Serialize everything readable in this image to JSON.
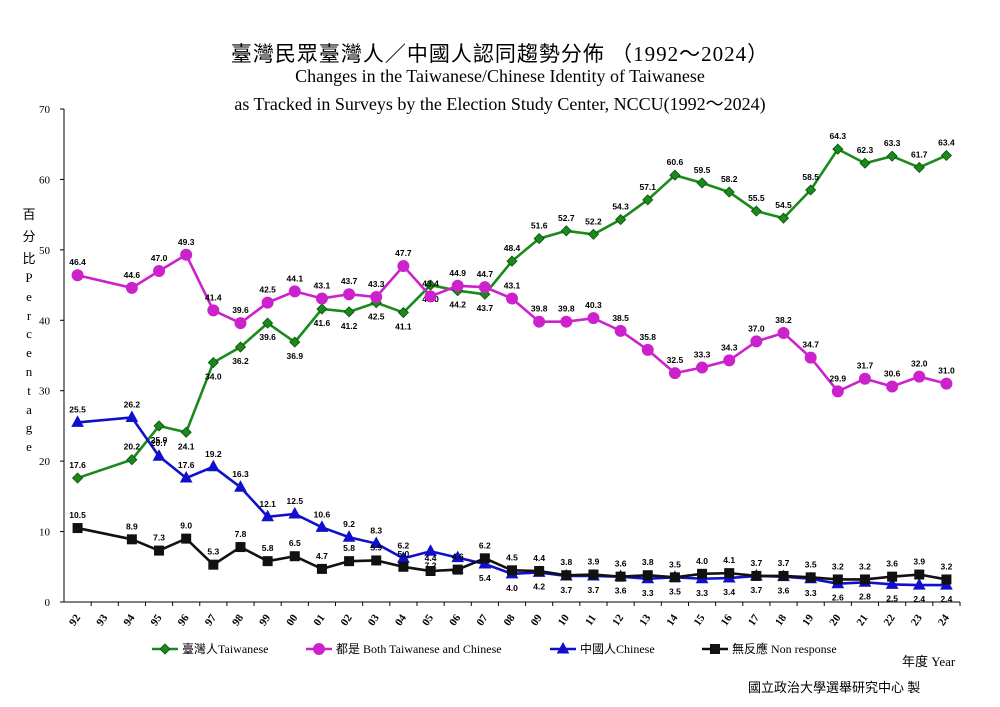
{
  "chart_data": {
    "type": "line",
    "title": "臺灣民眾臺灣人／中國人認同趨勢分佈 （1992～2024）",
    "subtitle_line1": "Changes in the Taiwanese/Chinese Identity of Taiwanese",
    "subtitle_line2": "as Tracked in Surveys by the Election Study Center, NCCU(1992～2024)",
    "ylabel_zh": "百分比",
    "ylabel_en": "Percentage",
    "xlabel": "年度 Year",
    "credit": "國立政治大學選舉研究中心 製",
    "ylim": [
      0,
      70
    ],
    "yticks": [
      0,
      10,
      20,
      30,
      40,
      50,
      60,
      70
    ],
    "x": [
      "92",
      "93",
      "94",
      "95",
      "96",
      "97",
      "98",
      "99",
      "00",
      "01",
      "02",
      "03",
      "04",
      "05",
      "06",
      "07",
      "08",
      "09",
      "10",
      "11",
      "12",
      "13",
      "14",
      "15",
      "16",
      "17",
      "18",
      "19",
      "20",
      "21",
      "22",
      "23",
      "24"
    ],
    "series": [
      {
        "name": "臺灣人Taiwanese",
        "color": "#1a8a1a",
        "marker": "diamond",
        "values": [
          17.6,
          null,
          20.2,
          25.0,
          24.1,
          34.0,
          36.2,
          39.6,
          36.9,
          41.6,
          41.2,
          42.5,
          41.1,
          45.0,
          44.2,
          43.7,
          48.4,
          51.6,
          52.7,
          52.2,
          54.3,
          57.1,
          60.6,
          59.5,
          58.2,
          55.5,
          54.5,
          58.5,
          64.3,
          62.3,
          63.3,
          61.7,
          63.4
        ]
      },
      {
        "name": "都是 Both Taiwanese and Chinese",
        "color": "#cc22cc",
        "marker": "circle",
        "values": [
          46.4,
          null,
          44.6,
          47.0,
          49.3,
          41.4,
          39.6,
          42.5,
          44.1,
          43.1,
          43.7,
          43.3,
          47.7,
          43.4,
          44.9,
          44.7,
          43.1,
          39.8,
          39.8,
          40.3,
          38.5,
          35.8,
          32.5,
          33.3,
          34.3,
          37.0,
          38.2,
          34.7,
          29.9,
          31.7,
          30.6,
          32.0,
          31.0
        ]
      },
      {
        "name": "中國人Chinese",
        "color": "#1010cc",
        "marker": "triangle",
        "values": [
          25.5,
          null,
          26.2,
          20.7,
          17.6,
          19.2,
          16.3,
          12.1,
          12.5,
          10.6,
          9.2,
          8.3,
          6.2,
          7.2,
          6.3,
          5.4,
          4.0,
          4.2,
          3.7,
          3.7,
          3.6,
          3.3,
          3.5,
          3.3,
          3.4,
          3.7,
          3.6,
          3.3,
          2.6,
          2.8,
          2.5,
          2.4,
          2.4
        ]
      },
      {
        "name": "無反應 Non response",
        "color": "#111111",
        "marker": "square",
        "values": [
          10.5,
          null,
          8.9,
          7.3,
          9.0,
          5.3,
          7.8,
          5.8,
          6.5,
          4.7,
          5.8,
          5.9,
          5.0,
          4.4,
          4.6,
          6.2,
          4.5,
          4.4,
          3.8,
          3.9,
          3.6,
          3.8,
          3.5,
          4.0,
          4.1,
          3.7,
          3.7,
          3.5,
          3.2,
          3.2,
          3.6,
          3.9,
          3.2
        ]
      }
    ],
    "grid": false,
    "legend_position": "bottom"
  }
}
